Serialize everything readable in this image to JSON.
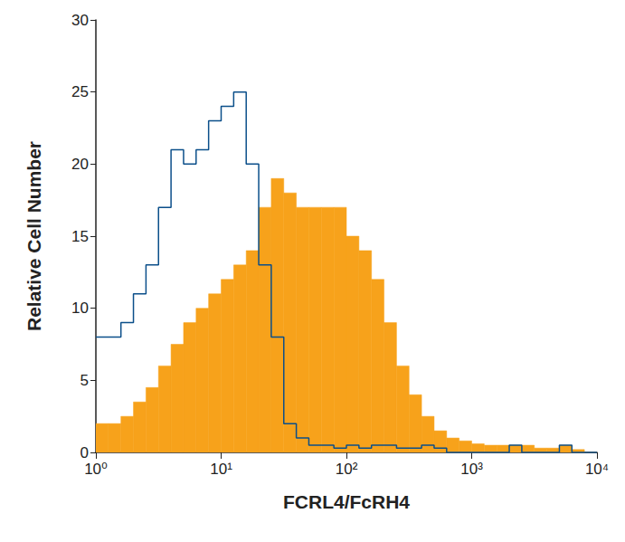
{
  "chart_data": {
    "type": "histogram",
    "x_label": "FCRL4/FcRH4",
    "y_label": "Relative Cell Number",
    "log": "x",
    "grid": false,
    "xlim": [
      1,
      10000
    ],
    "xticks": [
      {
        "value": 1,
        "label": "10⁰"
      },
      {
        "value": 10,
        "label": "10¹"
      },
      {
        "value": 100,
        "label": "10²"
      },
      {
        "value": 1000,
        "label": "10³"
      },
      {
        "value": 10000,
        "label": "10⁴"
      }
    ],
    "ylim": [
      0,
      30
    ],
    "yticks": [
      0,
      5,
      10,
      15,
      20,
      25,
      30
    ],
    "bins": [
      1,
      1.259,
      1.585,
      1.995,
      2.512,
      3.162,
      3.981,
      5.012,
      6.31,
      7.943,
      10,
      12.59,
      15.85,
      19.95,
      25.12,
      31.62,
      39.81,
      50.12,
      63.1,
      79.43,
      100,
      125.9,
      158.5,
      199.5,
      251.2,
      316.2,
      398.1,
      501.2,
      631,
      794.3,
      1000,
      1259,
      1585,
      1995,
      2512,
      3162,
      3981,
      5012,
      6310,
      7943,
      10000
    ],
    "series": [
      {
        "type": "bar",
        "color": "#f7a21b",
        "values": [
          2,
          2,
          2.5,
          3.5,
          4.5,
          6,
          7.5,
          9,
          10,
          11,
          12,
          13,
          14,
          17,
          19,
          18,
          17,
          17,
          17,
          17,
          15,
          14,
          12,
          9,
          6,
          4,
          2.5,
          1.5,
          1,
          0.8,
          0.6,
          0.5,
          0.5,
          0.5,
          0.5,
          0.3,
          0.3,
          0.5,
          0.2,
          0
        ]
      },
      {
        "type": "line",
        "color": "#0b4f8a",
        "values": [
          8,
          8,
          9,
          11,
          13,
          17,
          21,
          20,
          21,
          23,
          24,
          25,
          20,
          13,
          8,
          2,
          1,
          0.5,
          0.5,
          0.3,
          0.5,
          0.3,
          0.5,
          0.5,
          0.3,
          0.3,
          0.5,
          0.3,
          0,
          0,
          0,
          0,
          0,
          0.5,
          0,
          0,
          0,
          0.5,
          0,
          0
        ]
      }
    ]
  }
}
